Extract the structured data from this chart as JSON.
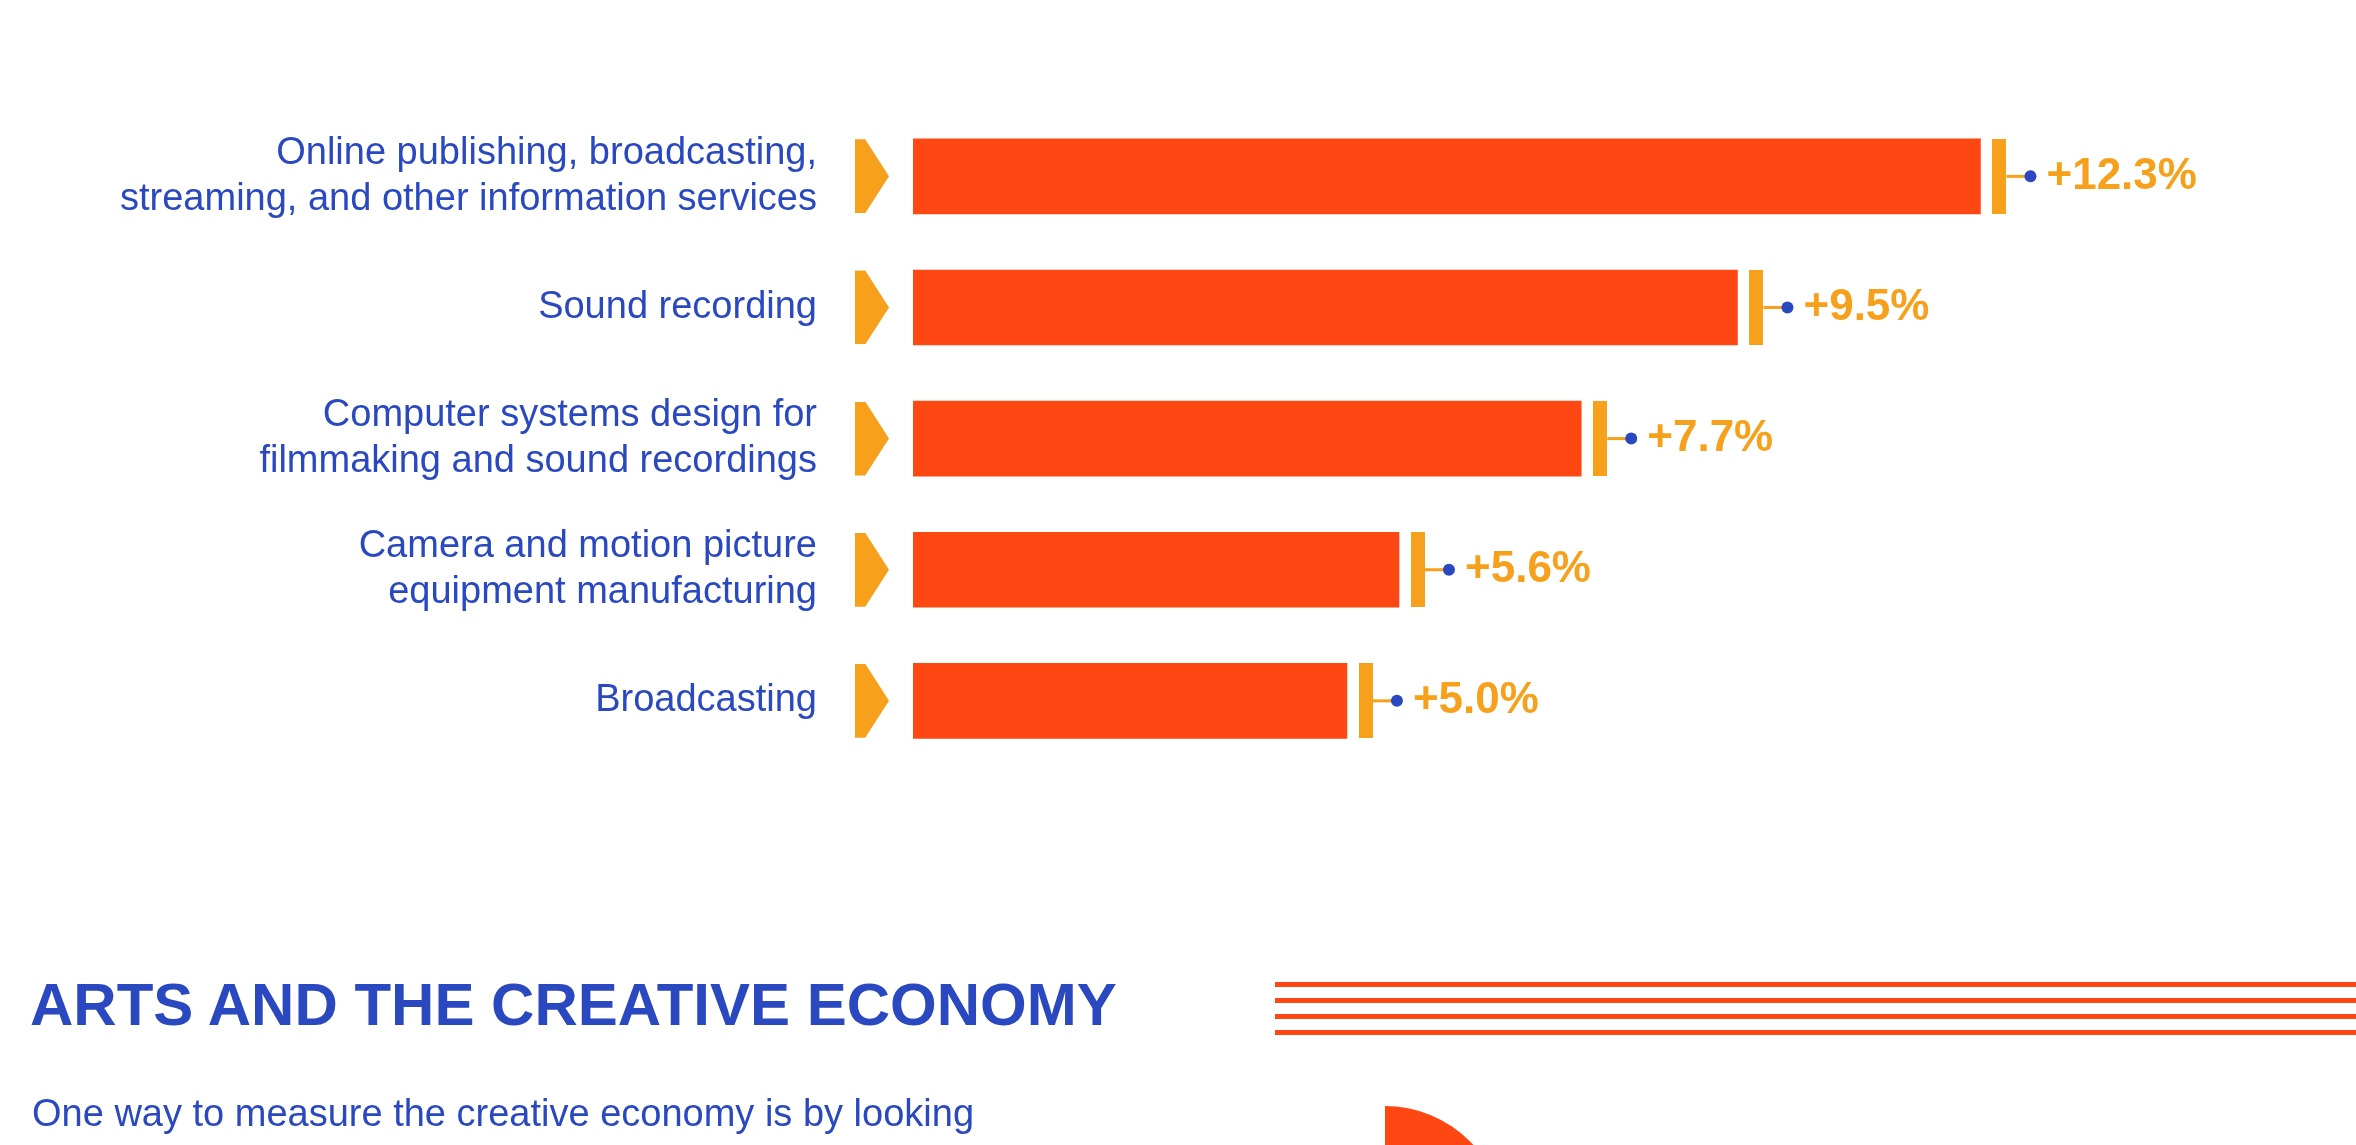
{
  "chart_data": {
    "type": "bar",
    "orientation": "horizontal",
    "categories": [
      "Online publishing, broadcasting, streaming, and other information services",
      "Sound recording",
      "Computer systems design for filmmaking and sound recordings",
      "Camera and motion picture equipment manufacturing",
      "Broadcasting"
    ],
    "values": [
      12.3,
      9.5,
      7.7,
      5.6,
      5.0
    ],
    "color": "#ff4713",
    "value_labels": [
      "+12.3%",
      "+9.5%",
      "+7.7%",
      "+5.6%",
      "+5.0%"
    ],
    "tick_labels": "y",
    "legend": false,
    "annotations": [
      "ARTS AND THE CREATIVE ECONOMY",
      "One way to measure the creative economy is by looking"
    ]
  }
}
